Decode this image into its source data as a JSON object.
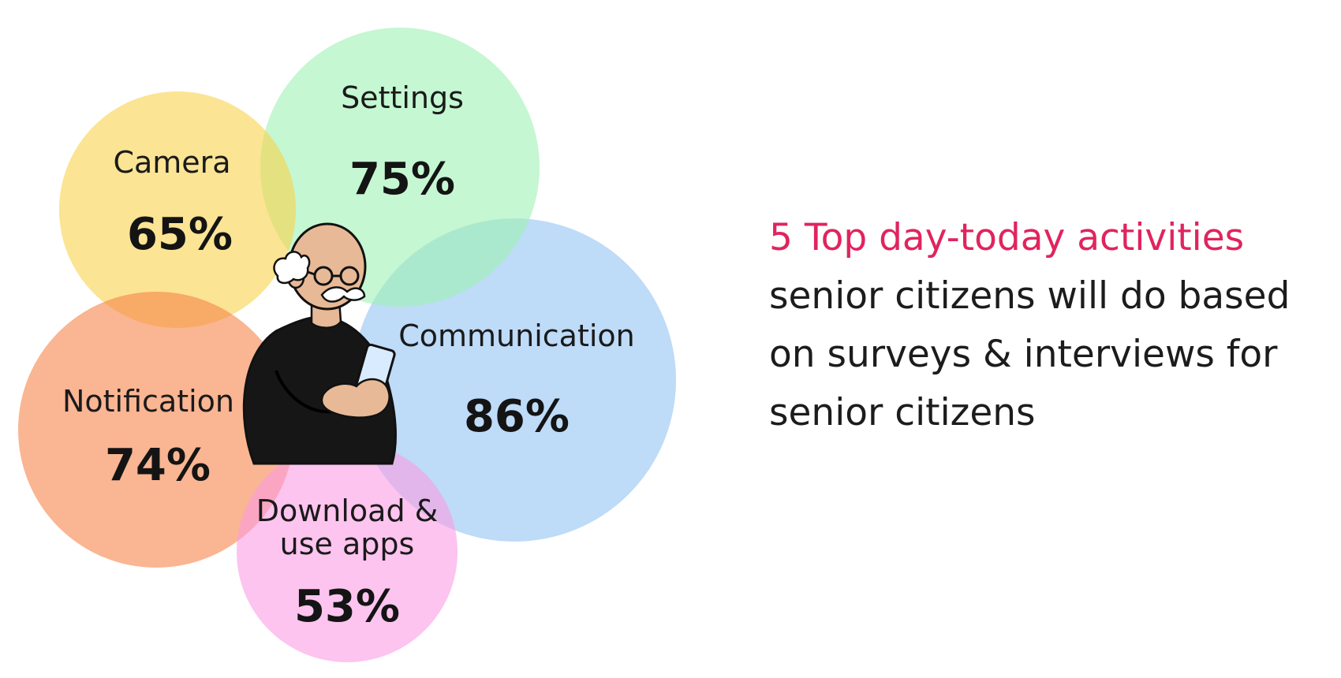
{
  "bubbles": [
    {
      "id": "camera",
      "label_lines": [
        "Camera"
      ],
      "value": "65%",
      "percent": 65,
      "color": "#f8d24b"
    },
    {
      "id": "settings",
      "label_lines": [
        "Settings"
      ],
      "value": "75%",
      "percent": 75,
      "color": "#9ef2b4"
    },
    {
      "id": "communication",
      "label_lines": [
        "Communication"
      ],
      "value": "86%",
      "percent": 86,
      "color": "#93c3f3"
    },
    {
      "id": "notification",
      "label_lines": [
        "Notification"
      ],
      "value": "74%",
      "percent": 74,
      "color": "#f6834a"
    },
    {
      "id": "download",
      "label_lines": [
        "Download &",
        "use apps"
      ],
      "value": "53%",
      "percent": 53,
      "color": "#fa9ce3"
    }
  ],
  "illustration": "senior-man-with-phone",
  "headline": {
    "accent_text": "5 Top day-today activities",
    "accent_color": "#e0245e",
    "lines": [
      "senior citizens will do based",
      "on surveys & interviews for",
      "senior citizens"
    ]
  }
}
